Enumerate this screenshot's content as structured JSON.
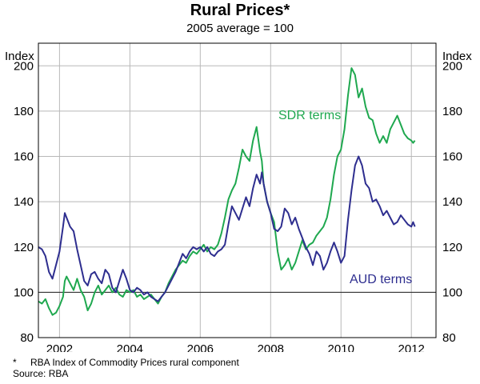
{
  "chart_data": {
    "type": "line",
    "title": "Rural Prices*",
    "subtitle": "2005 average = 100",
    "ylabel_left": "Index",
    "ylabel_right": "Index",
    "ylim": [
      80,
      210
    ],
    "yticks": [
      80,
      100,
      120,
      140,
      160,
      180,
      200
    ],
    "xlim": [
      2001.4,
      2012.7
    ],
    "xticks": [
      2002,
      2004,
      2006,
      2008,
      2010,
      2012
    ],
    "xtick_labels": [
      "2002",
      "2004",
      "2006",
      "2008",
      "2010",
      "2012"
    ],
    "reference_line": 100,
    "series": [
      {
        "name": "SDR terms",
        "color": "#1fa84f",
        "x": [
          2001.4,
          2001.5,
          2001.6,
          2001.7,
          2001.8,
          2001.9,
          2002.0,
          2002.1,
          2002.15,
          2002.2,
          2002.3,
          2002.4,
          2002.5,
          2002.6,
          2002.7,
          2002.8,
          2002.9,
          2003.0,
          2003.1,
          2003.2,
          2003.3,
          2003.4,
          2003.5,
          2003.6,
          2003.7,
          2003.8,
          2003.9,
          2004.0,
          2004.1,
          2004.2,
          2004.3,
          2004.4,
          2004.5,
          2004.6,
          2004.7,
          2004.8,
          2004.9,
          2005.0,
          2005.1,
          2005.2,
          2005.3,
          2005.4,
          2005.5,
          2005.6,
          2005.7,
          2005.8,
          2005.9,
          2006.0,
          2006.1,
          2006.2,
          2006.3,
          2006.4,
          2006.5,
          2006.6,
          2006.7,
          2006.8,
          2006.9,
          2007.0,
          2007.1,
          2007.2,
          2007.3,
          2007.4,
          2007.5,
          2007.6,
          2007.7,
          2007.75,
          2007.8,
          2007.9,
          2008.0,
          2008.1,
          2008.2,
          2008.3,
          2008.4,
          2008.5,
          2008.6,
          2008.7,
          2008.8,
          2008.9,
          2009.0,
          2009.1,
          2009.2,
          2009.3,
          2009.4,
          2009.5,
          2009.6,
          2009.7,
          2009.8,
          2009.9,
          2010.0,
          2010.1,
          2010.2,
          2010.3,
          2010.4,
          2010.5,
          2010.6,
          2010.7,
          2010.8,
          2010.9,
          2011.0,
          2011.1,
          2011.2,
          2011.3,
          2011.4,
          2011.5,
          2011.6,
          2011.7,
          2011.8,
          2011.9,
          2012.0,
          2012.05,
          2012.1
        ],
        "values": [
          96,
          95,
          97,
          93,
          90,
          91,
          94,
          98,
          105,
          107,
          104,
          101,
          106,
          101,
          98,
          92,
          95,
          100,
          103,
          99,
          101,
          103,
          100,
          102,
          99,
          98,
          101,
          100,
          101,
          98,
          99,
          97,
          98,
          99,
          97,
          95,
          98,
          100,
          104,
          107,
          110,
          112,
          114,
          113,
          116,
          118,
          117,
          119,
          121,
          118,
          120,
          119,
          121,
          126,
          133,
          141,
          145,
          148,
          155,
          163,
          160,
          158,
          167,
          173,
          162,
          158,
          148,
          140,
          135,
          131,
          118,
          110,
          112,
          115,
          110,
          113,
          118,
          123,
          119,
          121,
          122,
          125,
          127,
          129,
          133,
          141,
          152,
          160,
          163,
          172,
          187,
          199,
          196,
          186,
          190,
          182,
          177,
          176,
          170,
          166,
          169,
          166,
          172,
          175,
          178,
          174,
          170,
          168,
          167,
          166,
          167
        ]
      },
      {
        "name": "AUD terms",
        "color": "#2e2e8f",
        "x": [
          2001.4,
          2001.5,
          2001.6,
          2001.7,
          2001.8,
          2001.9,
          2002.0,
          2002.1,
          2002.15,
          2002.2,
          2002.3,
          2002.4,
          2002.5,
          2002.6,
          2002.7,
          2002.8,
          2002.9,
          2003.0,
          2003.1,
          2003.2,
          2003.3,
          2003.4,
          2003.5,
          2003.6,
          2003.7,
          2003.8,
          2003.9,
          2004.0,
          2004.1,
          2004.2,
          2004.3,
          2004.4,
          2004.5,
          2004.6,
          2004.7,
          2004.8,
          2004.9,
          2005.0,
          2005.1,
          2005.2,
          2005.3,
          2005.4,
          2005.5,
          2005.6,
          2005.7,
          2005.8,
          2005.9,
          2006.0,
          2006.1,
          2006.2,
          2006.3,
          2006.4,
          2006.5,
          2006.6,
          2006.7,
          2006.8,
          2006.9,
          2007.0,
          2007.1,
          2007.2,
          2007.3,
          2007.4,
          2007.5,
          2007.6,
          2007.7,
          2007.75,
          2007.8,
          2007.9,
          2008.0,
          2008.1,
          2008.2,
          2008.3,
          2008.4,
          2008.5,
          2008.6,
          2008.7,
          2008.8,
          2008.9,
          2009.0,
          2009.1,
          2009.2,
          2009.3,
          2009.4,
          2009.5,
          2009.6,
          2009.7,
          2009.8,
          2009.9,
          2010.0,
          2010.1,
          2010.2,
          2010.3,
          2010.4,
          2010.5,
          2010.6,
          2010.7,
          2010.8,
          2010.9,
          2011.0,
          2011.1,
          2011.2,
          2011.3,
          2011.4,
          2011.5,
          2011.6,
          2011.7,
          2011.8,
          2011.9,
          2012.0,
          2012.05,
          2012.1
        ],
        "values": [
          120,
          119,
          116,
          109,
          106,
          112,
          118,
          129,
          135,
          133,
          129,
          127,
          119,
          112,
          105,
          103,
          108,
          109,
          106,
          104,
          110,
          108,
          102,
          100,
          105,
          110,
          106,
          101,
          100,
          102,
          101,
          99,
          100,
          98,
          97,
          96,
          98,
          100,
          103,
          106,
          109,
          113,
          117,
          115,
          118,
          120,
          119,
          120,
          118,
          120,
          117,
          116,
          118,
          119,
          121,
          130,
          138,
          135,
          132,
          137,
          142,
          138,
          146,
          152,
          148,
          153,
          148,
          140,
          135,
          128,
          127,
          129,
          137,
          135,
          130,
          133,
          128,
          124,
          120,
          117,
          112,
          118,
          116,
          110,
          113,
          118,
          122,
          118,
          113,
          116,
          132,
          145,
          156,
          160,
          156,
          148,
          146,
          140,
          141,
          138,
          134,
          136,
          133,
          130,
          131,
          134,
          132,
          130,
          129,
          131,
          129
        ]
      }
    ],
    "annotations": [
      {
        "text": "SDR terms",
        "series": "SDR terms"
      },
      {
        "text": "AUD terms",
        "series": "AUD terms"
      }
    ]
  },
  "footnotes": {
    "star": "*",
    "note": "RBA Index of Commodity Prices rural component",
    "source": "Source: RBA"
  }
}
